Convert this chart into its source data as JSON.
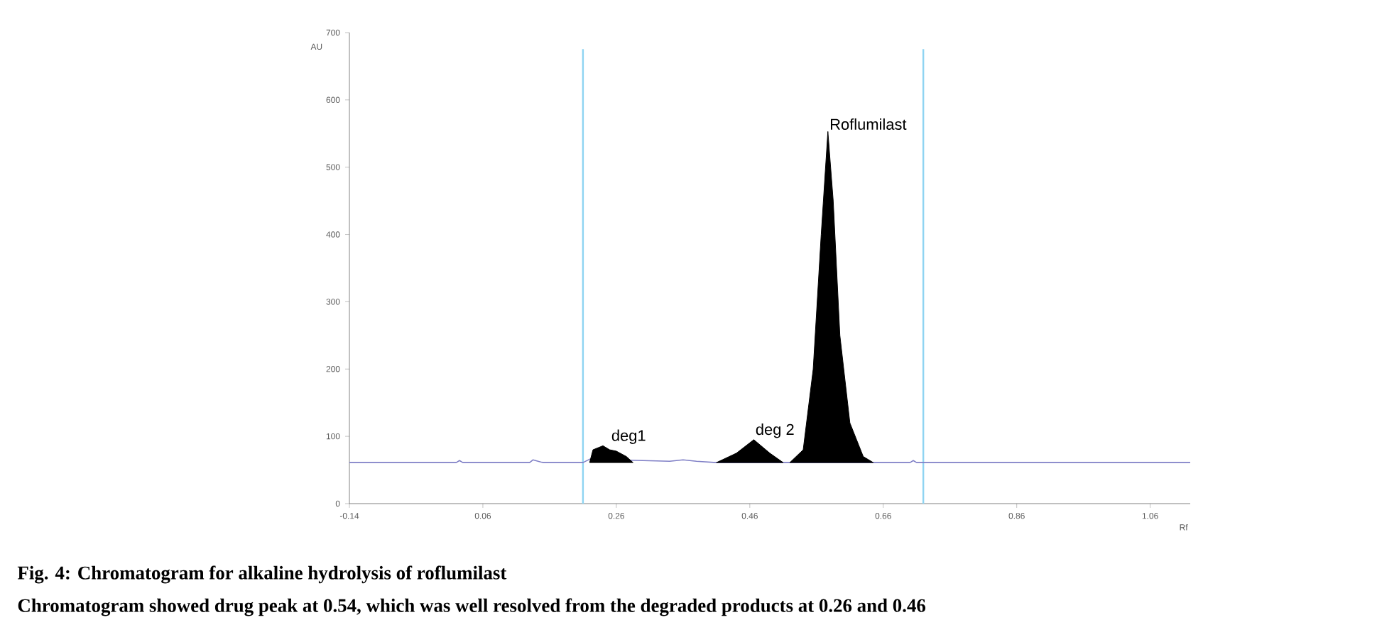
{
  "chart_data": {
    "type": "line",
    "title": "Fig. 4: Chromatogram for alkaline hydrolysis of roflumilast",
    "subtitle": "Chromatogram showed drug peak at 0.54, which was well resolved from the degraded products at 0.26 and 0.46",
    "xlabel": "Rf",
    "ylabel": "AU",
    "xlim": [
      -0.14,
      1.12
    ],
    "ylim": [
      0,
      700
    ],
    "xticks": [
      -0.14,
      0.06,
      0.26,
      0.46,
      0.66,
      0.86,
      1.06
    ],
    "yticks": [
      0,
      100,
      200,
      300,
      400,
      500,
      600,
      700
    ],
    "series": [
      {
        "color": "#7f7fc6",
        "x": [
          -0.14,
          0.02,
          0.025,
          0.03,
          0.13,
          0.135,
          0.15,
          0.21,
          0.22,
          0.3,
          0.34,
          0.36,
          0.38,
          0.41,
          0.51,
          0.52,
          0.645,
          0.7,
          0.705,
          0.71,
          0.8,
          1.12
        ],
        "values": [
          61,
          61,
          64,
          61,
          61,
          65,
          61,
          61,
          66,
          64,
          63,
          65,
          63,
          61,
          61,
          61,
          61,
          61,
          64,
          61,
          61,
          61
        ]
      },
      {
        "type": "area",
        "color": "#000000",
        "x": [
          0.22,
          0.225,
          0.24,
          0.25,
          0.26,
          0.275,
          0.285
        ],
        "values": [
          61,
          80,
          86,
          80,
          78,
          70,
          61
        ]
      },
      {
        "type": "area",
        "color": "#000000",
        "x": [
          0.41,
          0.44,
          0.466,
          0.49,
          0.51
        ],
        "values": [
          61,
          75,
          95,
          75,
          61
        ]
      },
      {
        "type": "area",
        "color": "#000000",
        "x": [
          0.52,
          0.54,
          0.555,
          0.567,
          0.577,
          0.585,
          0.595,
          0.61,
          0.63,
          0.645
        ],
        "values": [
          61,
          80,
          200,
          400,
          553,
          450,
          250,
          120,
          70,
          61
        ]
      }
    ],
    "ref_lines": [
      {
        "axis": "x",
        "value": 0.21,
        "color": "#8fd4f2"
      },
      {
        "axis": "x",
        "value": 0.72,
        "color": "#8fd4f2"
      }
    ],
    "annotations": [
      {
        "text": "deg1",
        "x": 0.25,
        "y": 86
      },
      {
        "text": "deg 2",
        "x": 0.466,
        "y": 95
      },
      {
        "text": "Roflumilast",
        "x": 0.577,
        "y": 553
      }
    ]
  }
}
